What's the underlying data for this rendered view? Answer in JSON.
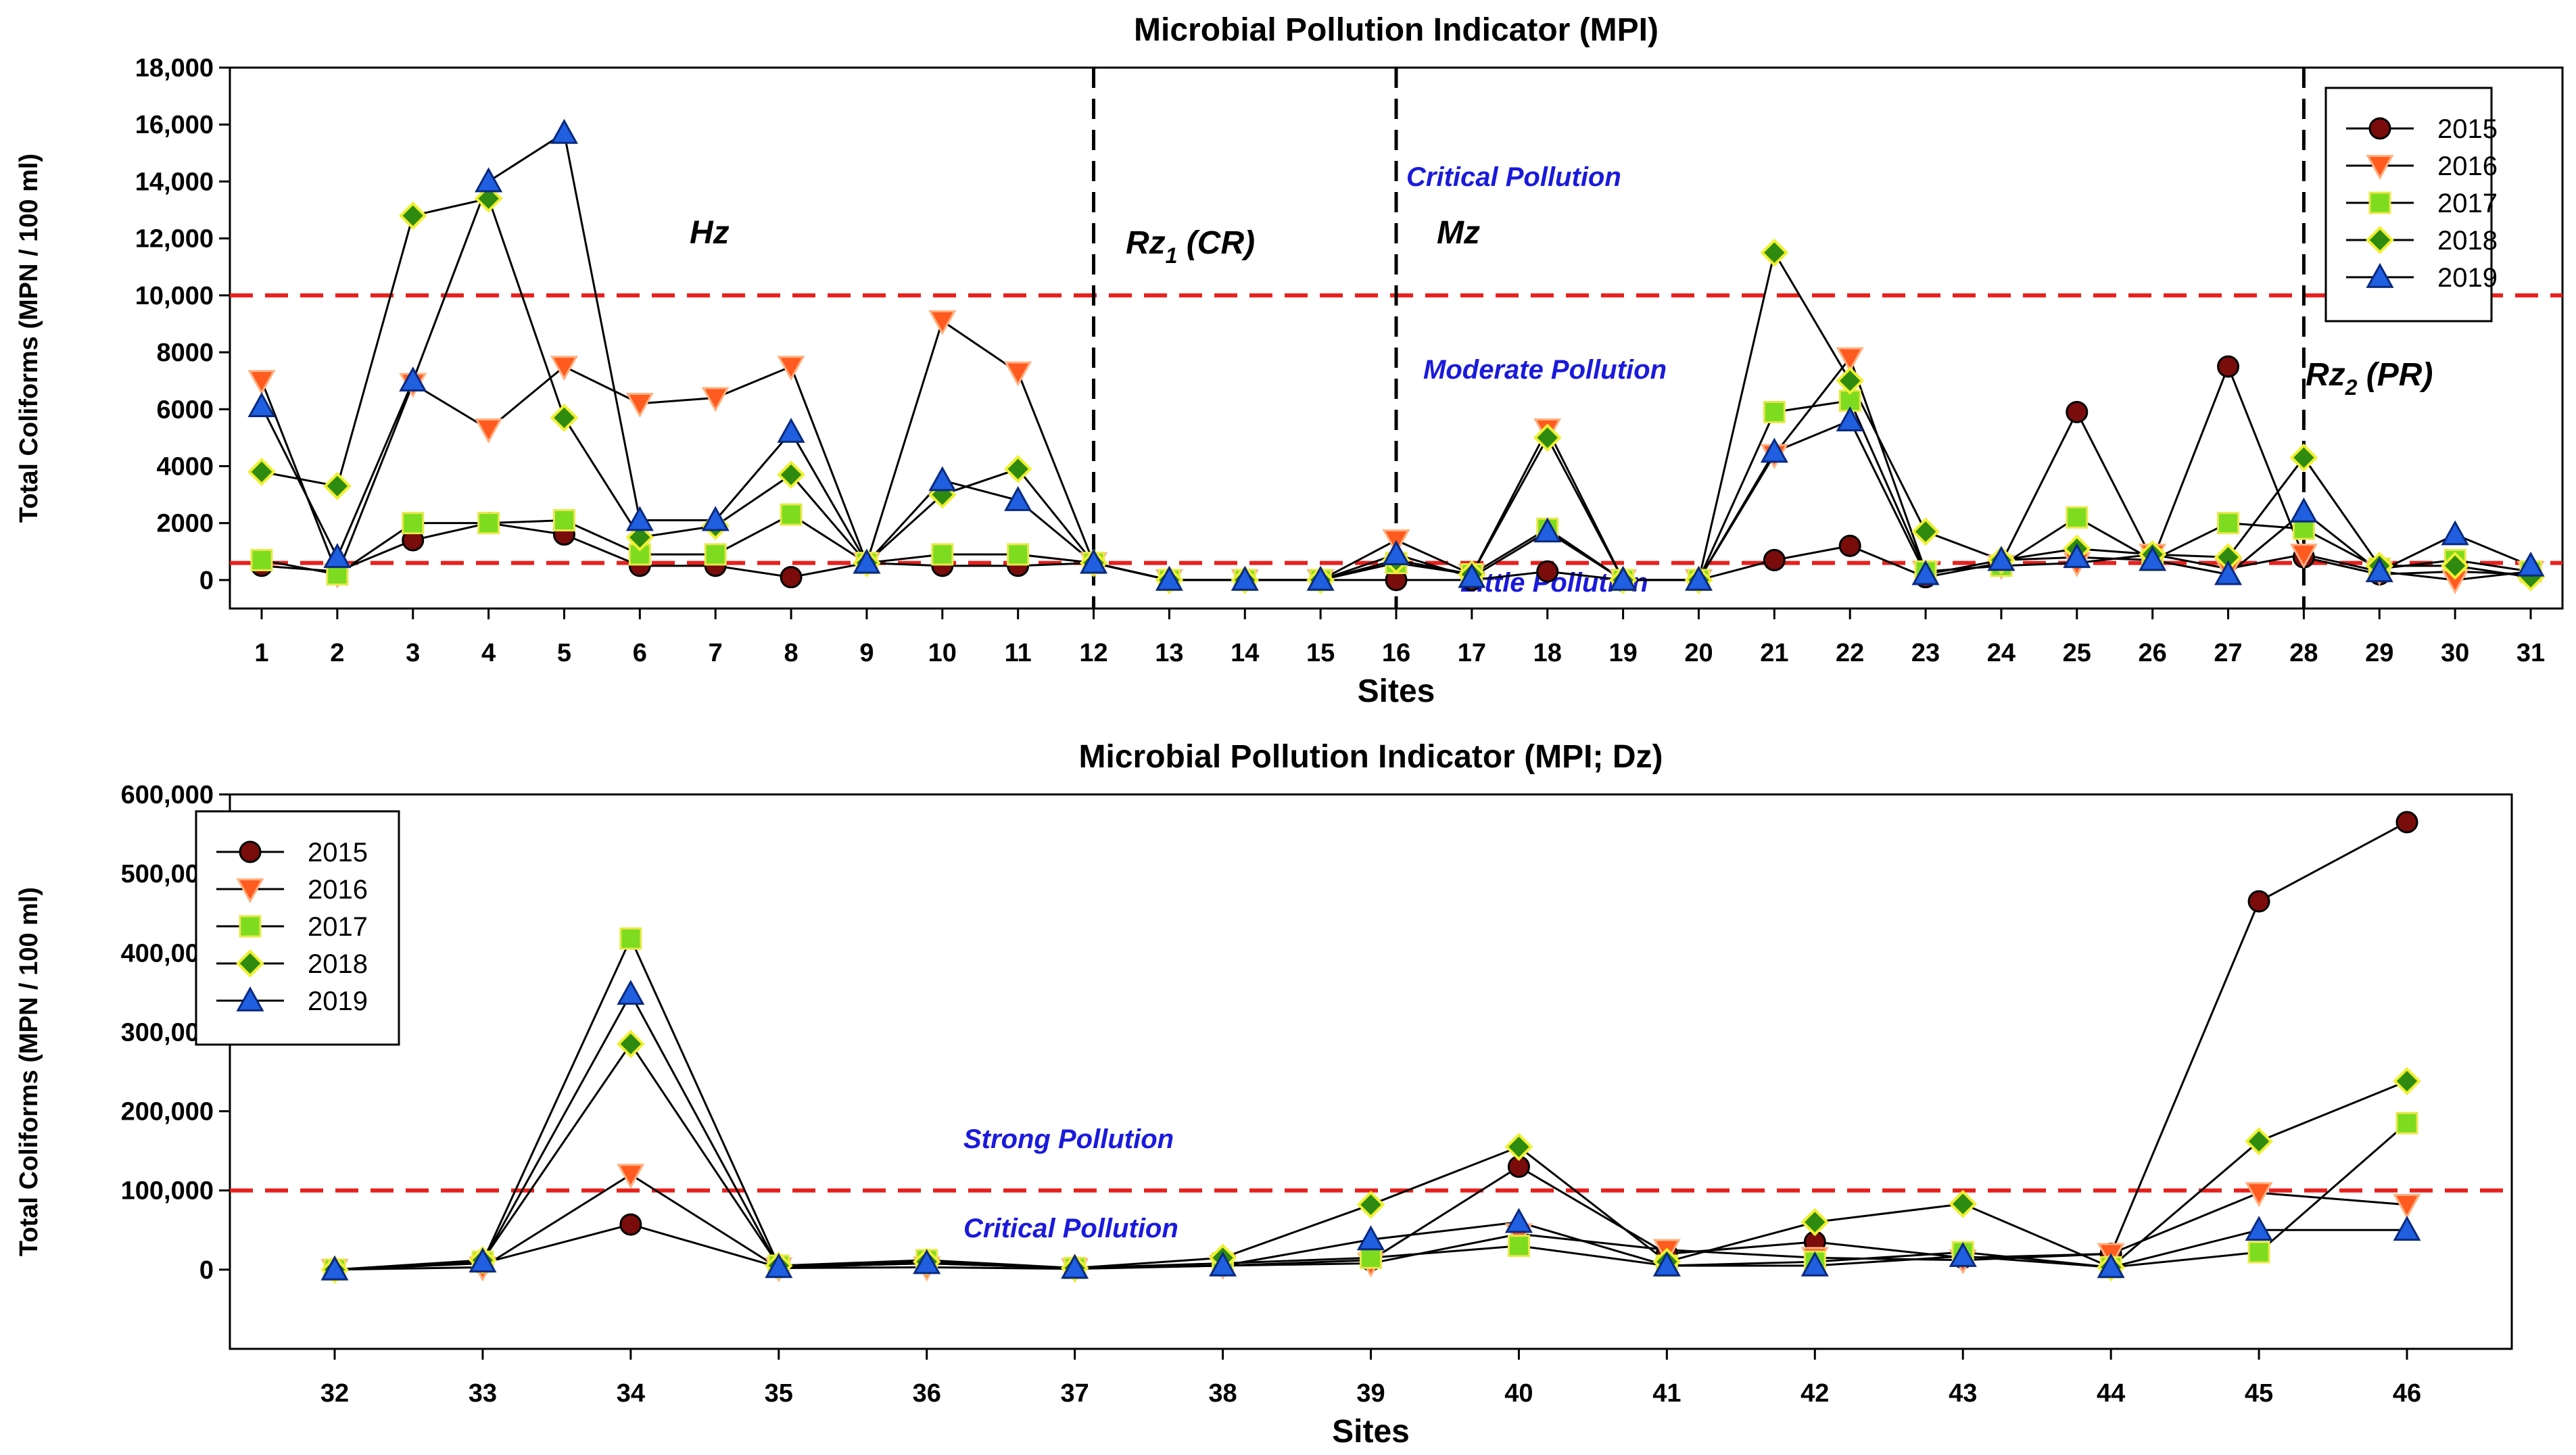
{
  "chart_data": [
    {
      "type": "line",
      "title": "Microbial Pollution Indicator (MPI)",
      "xlabel": "Sites",
      "ylabel": "Total Coliforms (MPN / 100 ml)",
      "ylim": [
        -1000,
        18000
      ],
      "yticks": [
        "0",
        "2000",
        "4000",
        "6000",
        "8000",
        "10,000",
        "12,000",
        "14,000",
        "16,000",
        "18,000"
      ],
      "grid": false,
      "legend_position": "top-right",
      "categories": [
        "1",
        "2",
        "3",
        "4",
        "5",
        "6",
        "7",
        "8",
        "9",
        "10",
        "11",
        "12",
        "13",
        "14",
        "15",
        "16",
        "17",
        "18",
        "19",
        "20",
        "21",
        "22",
        "23",
        "24",
        "25",
        "26",
        "27",
        "28",
        "29",
        "30",
        "31"
      ],
      "thresholds": [
        10000,
        600
      ],
      "zone_dividers_after_site": [
        "12",
        "16",
        "28"
      ],
      "zones": [
        {
          "name": "Hz",
          "sub": ""
        },
        {
          "name": "Rz",
          "sub": "1",
          "suffix": " (CR)"
        },
        {
          "name": "Mz",
          "sub": ""
        },
        {
          "name": "Rz",
          "sub": "2",
          "suffix": " (PR)"
        }
      ],
      "annotations": [
        "Critical Pollution",
        "Moderate Pollution",
        "Little Pollution"
      ],
      "series": [
        {
          "name": "2015",
          "marker": "circle",
          "color": "#7a0c0c",
          "values": [
            500,
            300,
            1400,
            2000,
            1600,
            500,
            500,
            100,
            600,
            500,
            500,
            600,
            0,
            0,
            0,
            0,
            0,
            300,
            0,
            0,
            700,
            1200,
            100,
            600,
            5900,
            700,
            7500,
            800,
            200,
            300,
            200
          ]
        },
        {
          "name": "2016",
          "marker": "triangle-down",
          "color": "#ff5a1f",
          "values": [
            7000,
            200,
            6900,
            5300,
            7500,
            6200,
            6400,
            7500,
            600,
            9100,
            7300,
            600,
            0,
            0,
            0,
            1400,
            200,
            5300,
            0,
            0,
            4400,
            7800,
            300,
            500,
            600,
            900,
            400,
            900,
            300,
            0,
            300
          ]
        },
        {
          "name": "2017",
          "marker": "square",
          "color": "#7ddc1f",
          "values": [
            700,
            200,
            2000,
            2000,
            2100,
            900,
            900,
            2300,
            600,
            900,
            900,
            600,
            0,
            0,
            0,
            600,
            200,
            1800,
            0,
            0,
            5900,
            6300,
            300,
            500,
            2200,
            700,
            2000,
            1800,
            400,
            700,
            300
          ]
        },
        {
          "name": "2018",
          "marker": "diamond",
          "color": "#2e8b10",
          "values": [
            3800,
            3300,
            12800,
            13400,
            5700,
            1500,
            1900,
            3700,
            600,
            3000,
            3900,
            600,
            0,
            0,
            0,
            700,
            200,
            5000,
            0,
            0,
            11500,
            7000,
            1700,
            700,
            1100,
            900,
            800,
            4300,
            500,
            500,
            100
          ]
        },
        {
          "name": "2019",
          "marker": "triangle-up",
          "color": "#1f5fe0",
          "values": [
            6100,
            800,
            7000,
            14000,
            15700,
            2100,
            2100,
            5200,
            600,
            3500,
            2800,
            600,
            0,
            0,
            0,
            900,
            100,
            1700,
            0,
            0,
            4500,
            5600,
            200,
            700,
            800,
            700,
            200,
            2400,
            300,
            1600,
            500
          ]
        }
      ]
    },
    {
      "type": "line",
      "title": "Microbial Pollution Indicator (MPI; Dz)",
      "xlabel": "Sites",
      "ylabel": "Total Coliforms (MPN / 100 ml)",
      "ylim": [
        -100000,
        600000
      ],
      "yticks": [
        "0",
        "100,000",
        "200,000",
        "300,000",
        "400,000",
        "500,000",
        "600,000"
      ],
      "grid": false,
      "legend_position": "top-left",
      "categories": [
        "32",
        "33",
        "34",
        "35",
        "36",
        "37",
        "38",
        "39",
        "40",
        "41",
        "42",
        "43",
        "44",
        "45",
        "46"
      ],
      "thresholds": [
        100000
      ],
      "annotations": [
        "Strong Pollution",
        "Critical Pollution"
      ],
      "series": [
        {
          "name": "2015",
          "marker": "circle",
          "color": "#7a0c0c",
          "values": [
            0,
            8000,
            57000,
            3000,
            8000,
            2000,
            5000,
            12000,
            130000,
            20000,
            35000,
            15000,
            20000,
            465000,
            565000
          ]
        },
        {
          "name": "2016",
          "marker": "triangle-down",
          "color": "#ff5a1f",
          "values": [
            0,
            3000,
            120000,
            2000,
            3000,
            1000,
            5000,
            8000,
            45000,
            25000,
            15000,
            12000,
            20000,
            97000,
            82000
          ]
        },
        {
          "name": "2017",
          "marker": "square",
          "color": "#7ddc1f",
          "values": [
            0,
            10000,
            418000,
            5000,
            12000,
            2000,
            8000,
            15000,
            30000,
            5000,
            10000,
            22000,
            3000,
            22000,
            185000
          ]
        },
        {
          "name": "2018",
          "marker": "diamond",
          "color": "#2e8b10",
          "values": [
            0,
            12000,
            285000,
            5000,
            10000,
            2000,
            15000,
            82000,
            155000,
            10000,
            60000,
            83000,
            3000,
            162000,
            238000
          ]
        },
        {
          "name": "2019",
          "marker": "triangle-up",
          "color": "#1f5fe0",
          "values": [
            0,
            10000,
            348000,
            3000,
            8000,
            2000,
            5000,
            38000,
            60000,
            5000,
            5000,
            17000,
            3000,
            50000,
            50000
          ]
        }
      ]
    }
  ]
}
